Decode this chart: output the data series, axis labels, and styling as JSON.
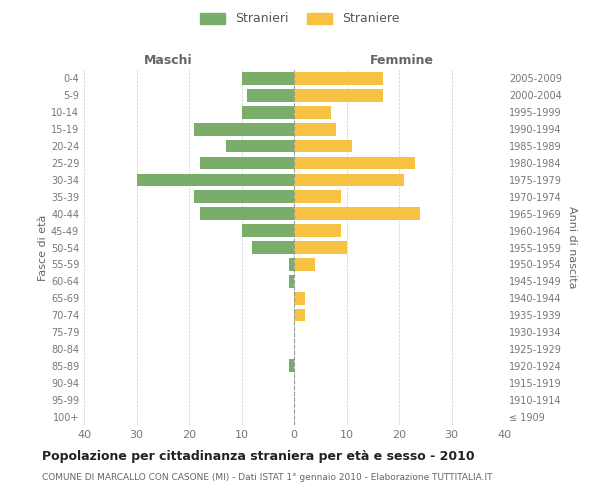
{
  "age_groups": [
    "100+",
    "95-99",
    "90-94",
    "85-89",
    "80-84",
    "75-79",
    "70-74",
    "65-69",
    "60-64",
    "55-59",
    "50-54",
    "45-49",
    "40-44",
    "35-39",
    "30-34",
    "25-29",
    "20-24",
    "15-19",
    "10-14",
    "5-9",
    "0-4"
  ],
  "birth_years": [
    "≤ 1909",
    "1910-1914",
    "1915-1919",
    "1920-1924",
    "1925-1929",
    "1930-1934",
    "1935-1939",
    "1940-1944",
    "1945-1949",
    "1950-1954",
    "1955-1959",
    "1960-1964",
    "1965-1969",
    "1970-1974",
    "1975-1979",
    "1980-1984",
    "1985-1989",
    "1990-1994",
    "1995-1999",
    "2000-2004",
    "2005-2009"
  ],
  "males": [
    0,
    0,
    0,
    1,
    0,
    0,
    0,
    0,
    1,
    1,
    8,
    10,
    18,
    19,
    30,
    18,
    13,
    19,
    10,
    9,
    10
  ],
  "females": [
    0,
    0,
    0,
    0,
    0,
    0,
    2,
    2,
    0,
    4,
    10,
    9,
    24,
    9,
    21,
    23,
    11,
    8,
    7,
    17,
    17
  ],
  "male_color": "#7aad6a",
  "female_color": "#f5c242",
  "male_label": "Stranieri",
  "female_label": "Straniere",
  "left_header": "Maschi",
  "right_header": "Femmine",
  "ylabel": "Fasce di età",
  "right_ylabel": "Anni di nascita",
  "title": "Popolazione per cittadinanza straniera per età e sesso - 2010",
  "subtitle": "COMUNE DI MARCALLO CON CASONE (MI) - Dati ISTAT 1° gennaio 2010 - Elaborazione TUTTITALIA.IT",
  "xlim": 40,
  "background_color": "#ffffff",
  "grid_color": "#cccccc"
}
